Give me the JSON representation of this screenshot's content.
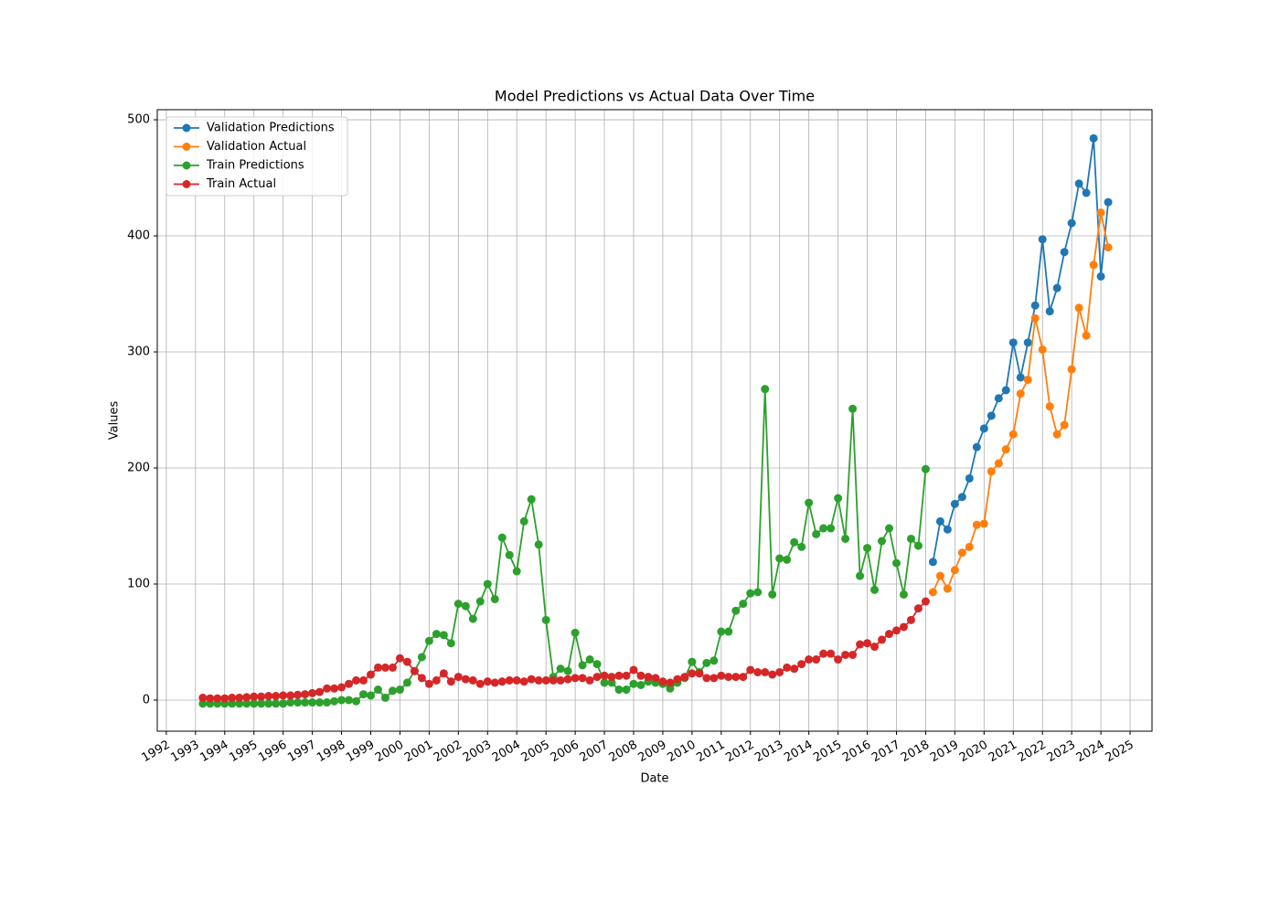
{
  "chart_data": {
    "type": "line",
    "title": "Model Predictions vs Actual Data Over Time",
    "x_label": "Date",
    "y_label": "Values",
    "x": [
      1993.25,
      1993.5,
      1993.75,
      1994,
      1994.25,
      1994.5,
      1994.75,
      1995,
      1995.25,
      1995.5,
      1995.75,
      1996,
      1996.25,
      1996.5,
      1996.75,
      1997,
      1997.25,
      1997.5,
      1997.75,
      1998,
      1998.25,
      1998.5,
      1998.75,
      1999,
      1999.25,
      1999.5,
      1999.75,
      2000,
      2000.25,
      2000.5,
      2000.75,
      2001,
      2001.25,
      2001.5,
      2001.75,
      2002,
      2002.25,
      2002.5,
      2002.75,
      2003,
      2003.25,
      2003.5,
      2003.75,
      2004,
      2004.25,
      2004.5,
      2004.75,
      2005,
      2005.25,
      2005.5,
      2005.75,
      2006,
      2006.25,
      2006.5,
      2006.75,
      2007,
      2007.25,
      2007.5,
      2007.75,
      2008,
      2008.25,
      2008.5,
      2008.75,
      2009,
      2009.25,
      2009.5,
      2009.75,
      2010,
      2010.25,
      2010.5,
      2010.75,
      2011,
      2011.25,
      2011.5,
      2011.75,
      2012,
      2012.25,
      2012.5,
      2012.75,
      2013,
      2013.25,
      2013.5,
      2013.75,
      2014,
      2014.25,
      2014.5,
      2014.75,
      2015,
      2015.25,
      2015.5,
      2015.75,
      2016,
      2016.25,
      2016.5,
      2016.75,
      2017,
      2017.25,
      2017.5,
      2017.75,
      2018,
      2018.25,
      2018.5,
      2018.75,
      2019,
      2019.25,
      2019.5,
      2019.75,
      2020,
      2020.25,
      2020.5,
      2020.75,
      2021,
      2021.25,
      2021.5,
      2021.75,
      2022,
      2022.25,
      2022.5,
      2022.75,
      2023,
      2023.25,
      2023.5,
      2023.75,
      2024,
      2024.25
    ],
    "series": [
      {
        "name": "Validation Predictions",
        "color": "#1f77b4",
        "values": [
          null,
          null,
          null,
          null,
          null,
          null,
          null,
          null,
          null,
          null,
          null,
          null,
          null,
          null,
          null,
          null,
          null,
          null,
          null,
          null,
          null,
          null,
          null,
          null,
          null,
          null,
          null,
          null,
          null,
          null,
          null,
          null,
          null,
          null,
          null,
          null,
          null,
          null,
          null,
          null,
          null,
          null,
          null,
          null,
          null,
          null,
          null,
          null,
          null,
          null,
          null,
          null,
          null,
          null,
          null,
          null,
          null,
          null,
          null,
          null,
          null,
          null,
          null,
          null,
          null,
          null,
          null,
          null,
          null,
          null,
          null,
          null,
          null,
          null,
          null,
          null,
          null,
          null,
          null,
          null,
          null,
          null,
          null,
          null,
          null,
          null,
          null,
          null,
          null,
          null,
          null,
          null,
          null,
          null,
          null,
          null,
          null,
          null,
          null,
          null,
          119,
          154,
          147,
          169,
          175,
          191,
          218,
          234,
          245,
          260,
          267,
          308,
          278,
          308,
          340,
          397,
          335,
          355,
          386,
          411,
          445,
          437,
          484,
          365,
          429
        ]
      },
      {
        "name": "Validation Actual",
        "color": "#ff7f0e",
        "values": [
          null,
          null,
          null,
          null,
          null,
          null,
          null,
          null,
          null,
          null,
          null,
          null,
          null,
          null,
          null,
          null,
          null,
          null,
          null,
          null,
          null,
          null,
          null,
          null,
          null,
          null,
          null,
          null,
          null,
          null,
          null,
          null,
          null,
          null,
          null,
          null,
          null,
          null,
          null,
          null,
          null,
          null,
          null,
          null,
          null,
          null,
          null,
          null,
          null,
          null,
          null,
          null,
          null,
          null,
          null,
          null,
          null,
          null,
          null,
          null,
          null,
          null,
          null,
          null,
          null,
          null,
          null,
          null,
          null,
          null,
          null,
          null,
          null,
          null,
          null,
          null,
          null,
          null,
          null,
          null,
          null,
          null,
          null,
          null,
          null,
          null,
          null,
          null,
          null,
          null,
          null,
          null,
          null,
          null,
          null,
          null,
          null,
          null,
          null,
          null,
          93,
          107,
          96,
          112,
          127,
          132,
          151,
          152,
          197,
          204,
          216,
          229,
          264,
          276,
          329,
          302,
          253,
          229,
          237,
          285,
          338,
          314,
          375,
          420,
          390
        ]
      },
      {
        "name": "Train Predictions",
        "color": "#2ca02c",
        "values": [
          -3,
          -3,
          -3,
          -3,
          -3,
          -3,
          -3,
          -3,
          -3,
          -3,
          -3,
          -3,
          -2,
          -2,
          -2,
          -2,
          -2,
          -2,
          -1,
          0,
          0,
          -1,
          5,
          4,
          9,
          2,
          8,
          9,
          15,
          25,
          37,
          51,
          57,
          56,
          49,
          83,
          81,
          70,
          85,
          100,
          87,
          140,
          125,
          111,
          154,
          173,
          134,
          69,
          20,
          27,
          25,
          58,
          30,
          35,
          31,
          15,
          15,
          9,
          9,
          14,
          13,
          16,
          15,
          14,
          10,
          15,
          19,
          33,
          24,
          32,
          34,
          59,
          59,
          77,
          83,
          92,
          93,
          268,
          91,
          122,
          121,
          136,
          132,
          170,
          143,
          148,
          148,
          174,
          139,
          251,
          107,
          131,
          95,
          137,
          148,
          118,
          91,
          139,
          133,
          199,
          null,
          null,
          null,
          null,
          null,
          null,
          null,
          null,
          null,
          null,
          null,
          null,
          null,
          null,
          null,
          null,
          null,
          null,
          null,
          null,
          null,
          null,
          null,
          null,
          null
        ]
      },
      {
        "name": "Train Actual",
        "color": "#d62728",
        "values": [
          2,
          1.5,
          1.5,
          1.5,
          2,
          2,
          2.5,
          3,
          3,
          3.5,
          3.5,
          4,
          4,
          4.5,
          5,
          6,
          7,
          10,
          10,
          11,
          14,
          17,
          17,
          22,
          28,
          28,
          28,
          36,
          33,
          25,
          19,
          14,
          17,
          23,
          16,
          20,
          18,
          17,
          14,
          16,
          15,
          16,
          17,
          17,
          16,
          18,
          17,
          17,
          17,
          17,
          18,
          19,
          19,
          17,
          20,
          21,
          20,
          21,
          21,
          26,
          21,
          20,
          19,
          16,
          15,
          18,
          20,
          23,
          23,
          19,
          19,
          21,
          20,
          20,
          20,
          26,
          24,
          24,
          22,
          24,
          28,
          27,
          31,
          35,
          35,
          40,
          40,
          35,
          39,
          39,
          48,
          49,
          46,
          52,
          57,
          60,
          63,
          69,
          79,
          85,
          null,
          null,
          null,
          null,
          null,
          null,
          null,
          null,
          null,
          null,
          null,
          null,
          null,
          null,
          null,
          null,
          null,
          null,
          null,
          null,
          null,
          null,
          null,
          null,
          null
        ]
      }
    ],
    "xlim": [
      1991.69,
      2025.75
    ],
    "xticks": [
      1992,
      1993,
      1994,
      1995,
      1996,
      1997,
      1998,
      1999,
      2000,
      2001,
      2002,
      2003,
      2004,
      2005,
      2006,
      2007,
      2008,
      2009,
      2010,
      2011,
      2012,
      2013,
      2014,
      2015,
      2016,
      2017,
      2018,
      2019,
      2020,
      2021,
      2022,
      2023,
      2024,
      2025
    ],
    "ylim": [
      -26.8,
      508.7
    ],
    "yticks": [
      0,
      100,
      200,
      300,
      400,
      500
    ],
    "grid": true,
    "legend": "upper-left"
  }
}
